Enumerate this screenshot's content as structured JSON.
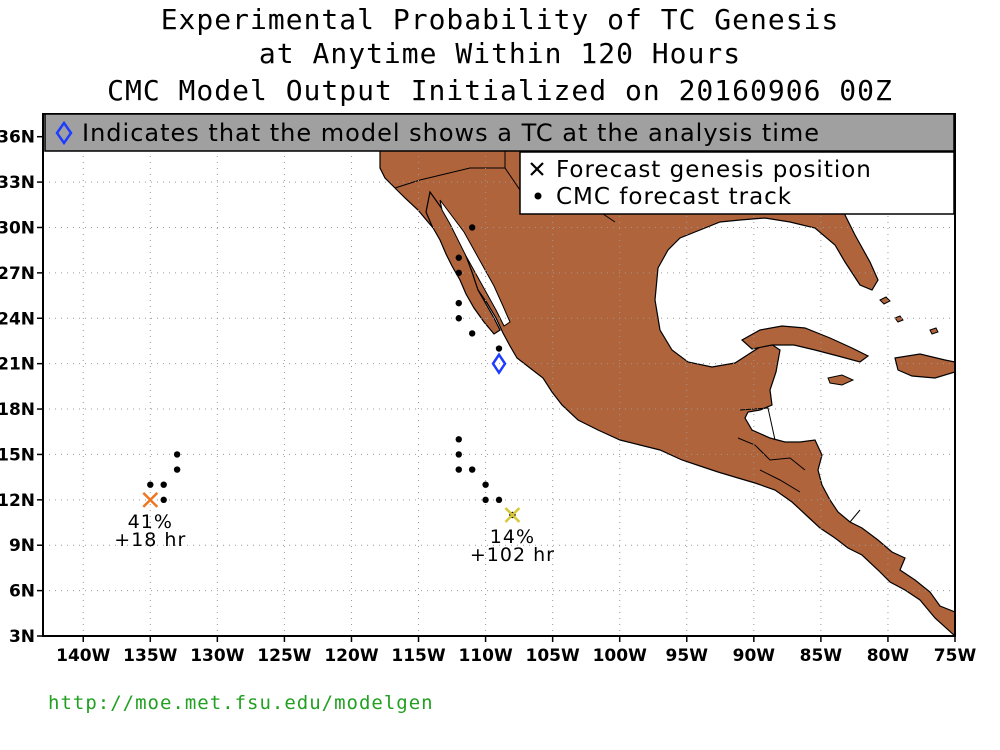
{
  "title": {
    "line1": "Experimental Probability of TC Genesis",
    "line2": "at Anytime Within 120 Hours",
    "line3": "CMC Model Output Initialized on 20160906 00Z"
  },
  "banner": {
    "text": "Indicates that the model shows a TC at the analysis time"
  },
  "legend": {
    "genesis_label": "Forecast genesis position",
    "track_label": "CMC forecast track"
  },
  "axes": {
    "lon_ticks": [
      "140W",
      "135W",
      "130W",
      "125W",
      "120W",
      "115W",
      "110W",
      "105W",
      "100W",
      "95W",
      "90W",
      "85W",
      "80W",
      "75W"
    ],
    "lat_ticks": [
      "36N",
      "33N",
      "30N",
      "27N",
      "24N",
      "21N",
      "18N",
      "15N",
      "12N",
      "9N",
      "6N",
      "3N"
    ],
    "lon_range": [
      -143,
      -75
    ],
    "lat_range": [
      3,
      37.5
    ],
    "grid": true
  },
  "colors": {
    "land": "#b0643c",
    "banner_bg": "#a0a0a0",
    "analysis_marker": "#1e3cff",
    "genesis_1": "#ee7722",
    "genesis_2": "#d8c838",
    "url": "#22a022"
  },
  "analysis_marker": {
    "lon": -109,
    "lat": 21,
    "icon": "diamond-icon"
  },
  "genesis": [
    {
      "lon": -135,
      "lat": 12,
      "probability": "41%",
      "lead": "+18 hr",
      "color": "#ee7722"
    },
    {
      "lon": -108,
      "lat": 11,
      "probability": "14%",
      "lead": "+102 hr",
      "color": "#d8c838"
    }
  ],
  "tracks": [
    [
      [
        -135,
        13
      ],
      [
        -134,
        13
      ],
      [
        -133,
        14
      ],
      [
        -133,
        15
      ],
      [
        -134,
        12
      ]
    ],
    [
      [
        -108,
        11
      ],
      [
        -109,
        12
      ],
      [
        -110,
        12
      ],
      [
        -111,
        14
      ],
      [
        -112,
        14
      ],
      [
        -112,
        15
      ],
      [
        -112,
        16
      ],
      [
        -110,
        13
      ]
    ],
    [
      [
        -109,
        22
      ],
      [
        -111,
        23
      ],
      [
        -112,
        24
      ],
      [
        -112,
        25
      ],
      [
        -112,
        27
      ],
      [
        -112,
        28
      ],
      [
        -111,
        30
      ]
    ]
  ],
  "footer": {
    "url": "http://moe.met.fsu.edu/modelgen"
  }
}
